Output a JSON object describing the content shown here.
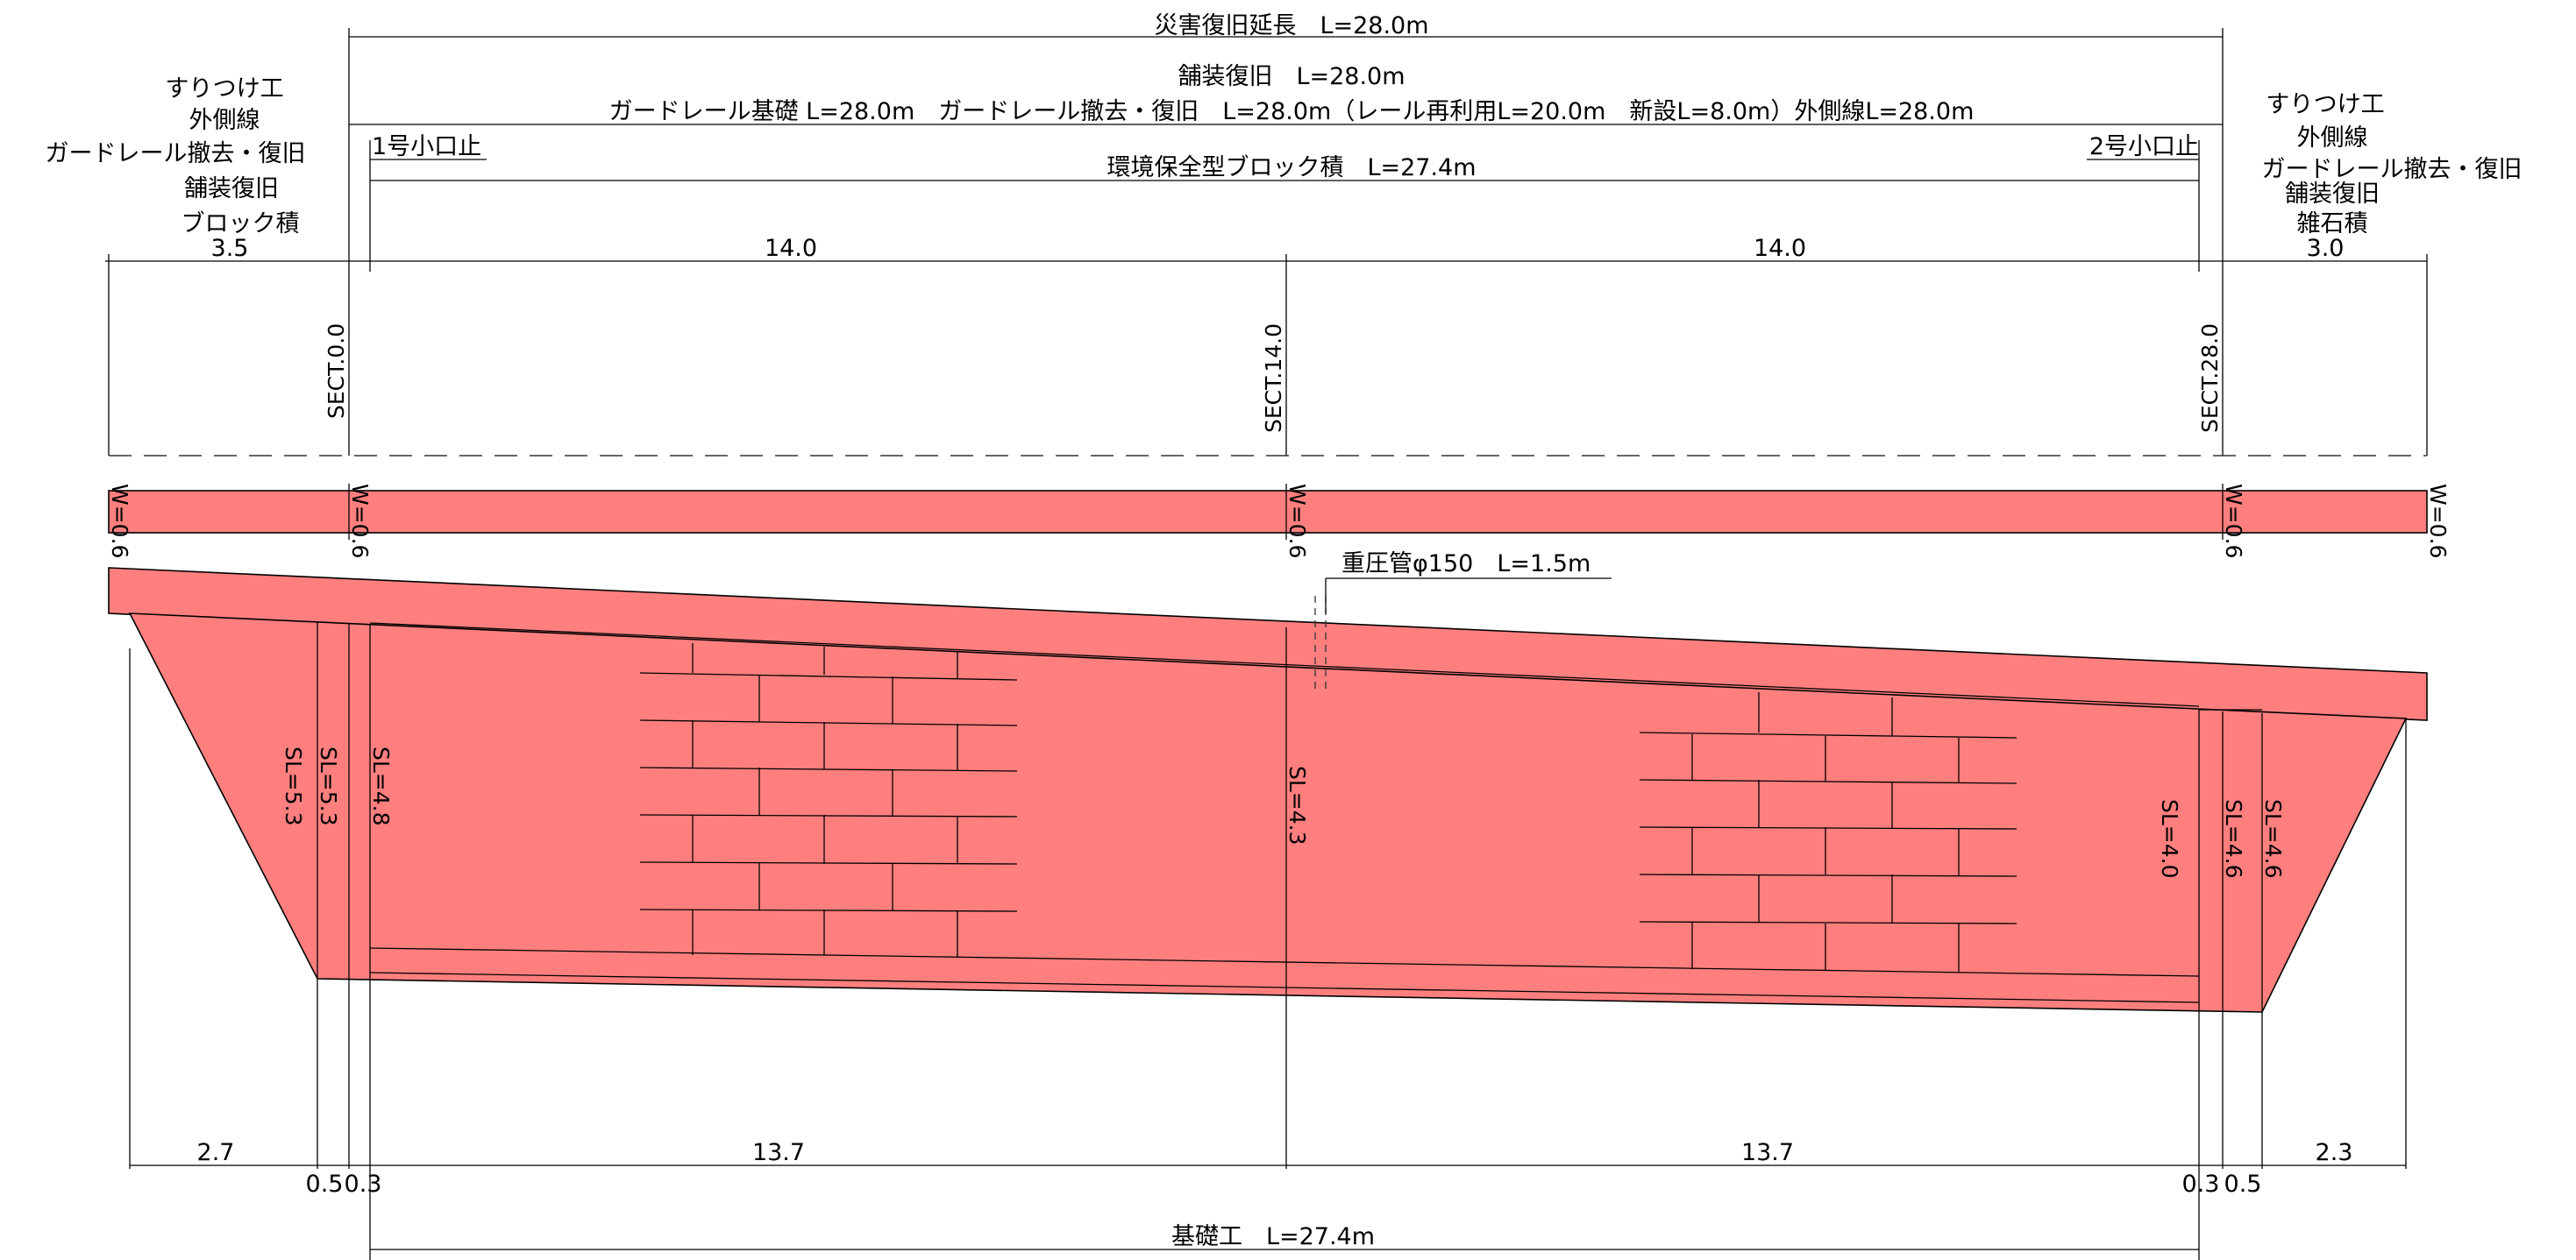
{
  "colors": {
    "fill": "#ff7f7f",
    "line": "#000000",
    "background": "#ffffff"
  },
  "top_labels": {
    "total": "災害復旧延長　L=28.0m",
    "paving": "舗装復旧　L=28.0m",
    "guardrail": "ガードレール基礎 L=28.0m　ガードレール撤去・復旧　L=28.0m（レール再利用L=20.0m　新設L=8.0m）外側線L=28.0m",
    "stop1": "1号小口止",
    "stop2": "2号小口止",
    "block": "環境保全型ブロック積　L=27.4m"
  },
  "left_note": [
    "すりつけ工",
    "外側線",
    "ガードレール撤去・復旧",
    "舗装復旧",
    "ブロック積"
  ],
  "right_note": [
    "すりつけ工",
    "外側線",
    "ガードレール撤去・復旧",
    "舗装復旧",
    "雑石積"
  ],
  "upper_dims": {
    "left": "3.5",
    "mid1": "14.0",
    "mid2": "14.0",
    "right": "3.0"
  },
  "sections": {
    "s0": "SECT.0.0",
    "s14": "SECT.14.0",
    "s28": "SECT.28.0"
  },
  "widths": {
    "w1": "W=0.6",
    "w2": "W=0.6",
    "w3": "W=0.6",
    "w4": "W=0.6",
    "w5": "W=0.6"
  },
  "pipe_label": "重圧管φ150　L=1.5m",
  "sl": {
    "a": "SL=5.3",
    "b": "SL=5.3",
    "c": "SL=4.8",
    "d": "SL=4.3",
    "e": "SL=4.0",
    "f": "SL=4.6",
    "g": "SL=4.6"
  },
  "lower_dims": {
    "left": "2.7",
    "a": "0.5",
    "b": "0.3",
    "mid1": "13.7",
    "mid2": "13.7",
    "c": "0.3",
    "d": "0.5",
    "right": "2.3"
  },
  "foundation": "基礎工　L=27.4m"
}
